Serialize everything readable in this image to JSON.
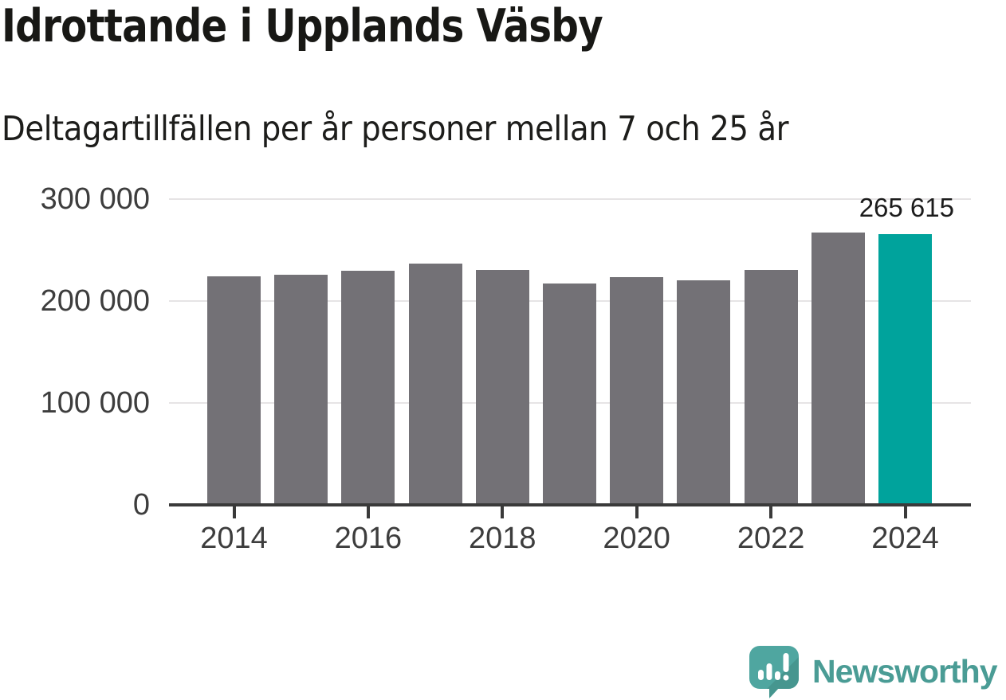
{
  "header": {
    "title": "Idrottande i Upplands Väsby",
    "subtitle": "Deltagartillfällen per år personer mellan 7 och 25 år"
  },
  "chart_data": {
    "type": "bar",
    "title": "Idrottande i Upplands Väsby",
    "subtitle": "Deltagartillfällen per år personer mellan 7 och 25 år",
    "categories": [
      "2014",
      "2015",
      "2016",
      "2017",
      "2018",
      "2019",
      "2020",
      "2021",
      "2022",
      "2023",
      "2024"
    ],
    "values": [
      223900,
      225900,
      229800,
      236900,
      230600,
      216900,
      223600,
      220200,
      230400,
      267100,
      265615
    ],
    "highlight_index": 10,
    "highlight_label": "265 615",
    "xlabel": "",
    "ylabel": "",
    "ylim": [
      0,
      300000
    ],
    "grid": true,
    "legend": "none",
    "yticks": [
      {
        "value": 300000,
        "label": "300 000"
      },
      {
        "value": 200000,
        "label": "200 000"
      },
      {
        "value": 100000,
        "label": "100 000"
      },
      {
        "value": 0,
        "label": "0"
      }
    ],
    "xticks": [
      "2014",
      "2016",
      "2018",
      "2020",
      "2022",
      "2024"
    ],
    "colors": {
      "bar": "#737176",
      "highlight": "#00a39c",
      "gridline": "#e6e4e5",
      "axis": "#3a3a3a",
      "tick_text": "#3d3d3d"
    }
  },
  "footer": {
    "brand": "Newsworthy",
    "brand_color": "#4a9c95",
    "logo_icon": "speech-bubble-bar-chart-exclamation"
  }
}
